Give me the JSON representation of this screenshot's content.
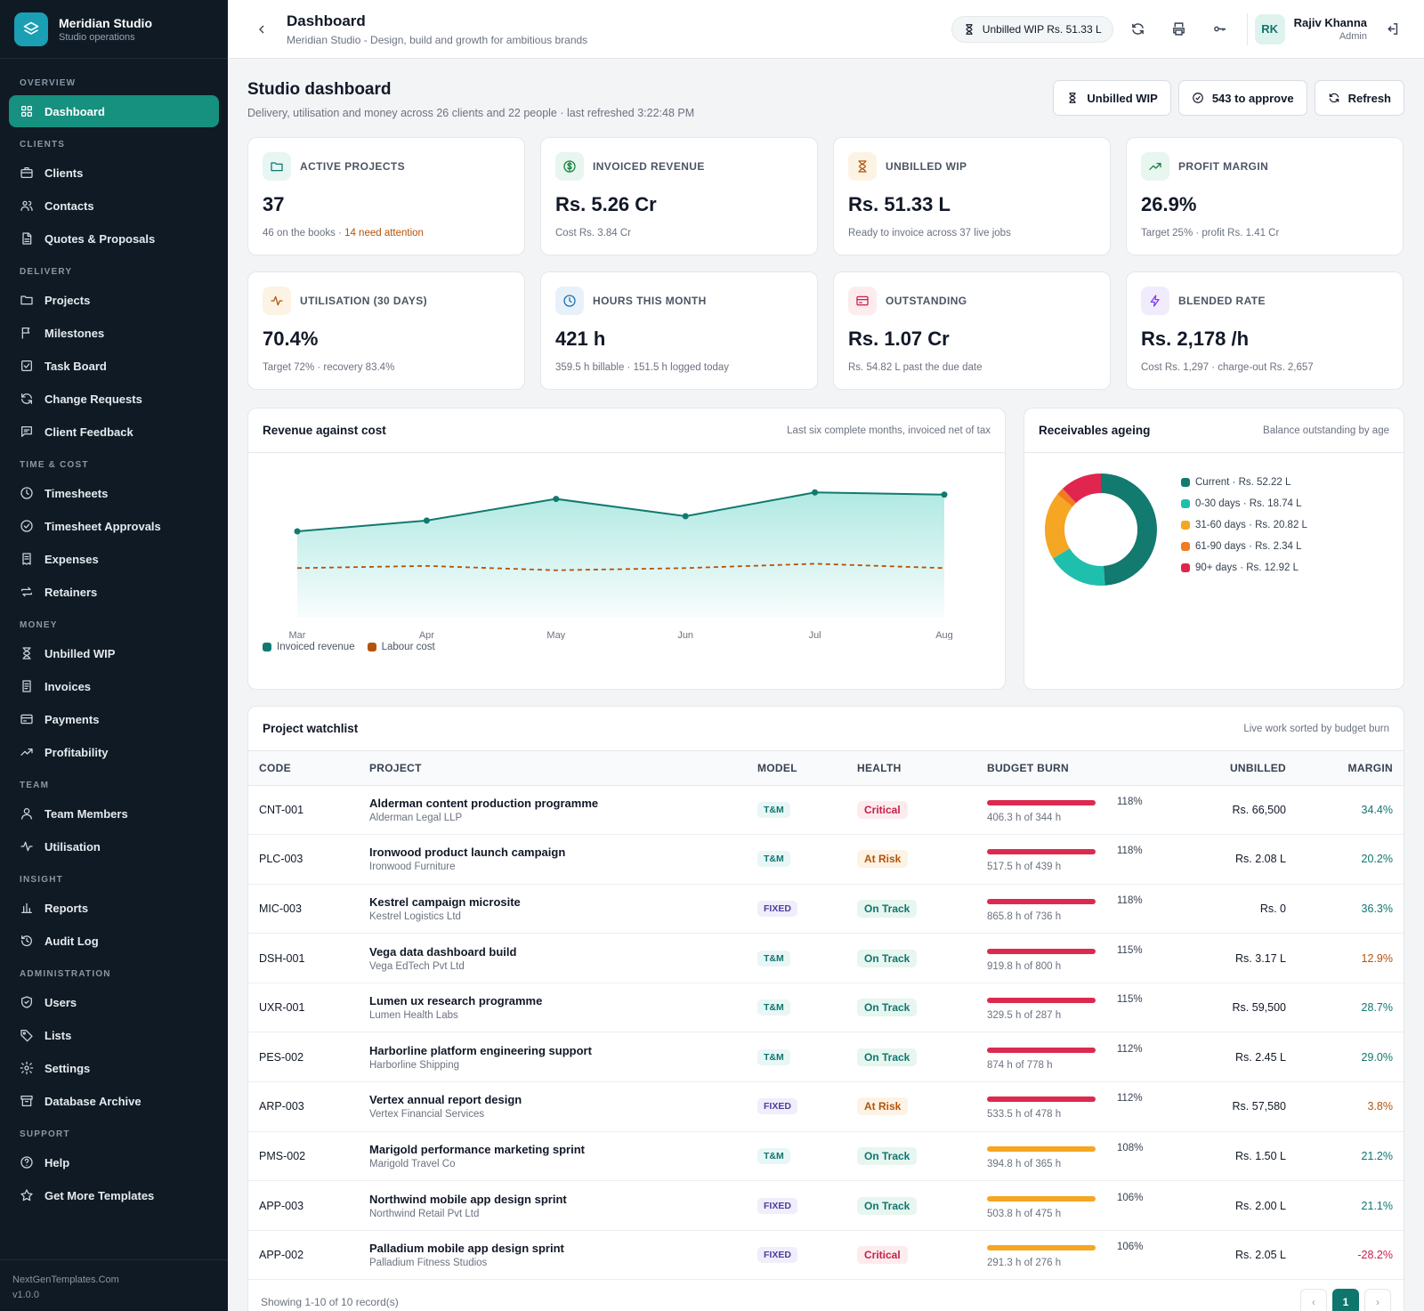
{
  "brand": {
    "name": "Meridian Studio",
    "subtitle": "Studio operations"
  },
  "sidebar": {
    "sections": [
      {
        "label": "OVERVIEW",
        "items": [
          {
            "label": "Dashboard",
            "icon": "dashboard-icon",
            "active": true
          }
        ]
      },
      {
        "label": "CLIENTS",
        "items": [
          {
            "label": "Clients",
            "icon": "briefcase-icon"
          },
          {
            "label": "Contacts",
            "icon": "users-icon"
          },
          {
            "label": "Quotes & Proposals",
            "icon": "document-icon"
          }
        ]
      },
      {
        "label": "DELIVERY",
        "items": [
          {
            "label": "Projects",
            "icon": "folder-icon"
          },
          {
            "label": "Milestones",
            "icon": "flag-icon"
          },
          {
            "label": "Task Board",
            "icon": "checkbox-icon"
          },
          {
            "label": "Change Requests",
            "icon": "refresh-icon"
          },
          {
            "label": "Client Feedback",
            "icon": "message-icon"
          }
        ]
      },
      {
        "label": "TIME & COST",
        "items": [
          {
            "label": "Timesheets",
            "icon": "clock-icon"
          },
          {
            "label": "Timesheet Approvals",
            "icon": "check-circle-icon"
          },
          {
            "label": "Expenses",
            "icon": "receipt-icon"
          },
          {
            "label": "Retainers",
            "icon": "repeat-icon"
          }
        ]
      },
      {
        "label": "MONEY",
        "items": [
          {
            "label": "Unbilled WIP",
            "icon": "hourglass-icon"
          },
          {
            "label": "Invoices",
            "icon": "invoice-icon"
          },
          {
            "label": "Payments",
            "icon": "credit-card-icon"
          },
          {
            "label": "Profitability",
            "icon": "trending-up-icon"
          }
        ]
      },
      {
        "label": "TEAM",
        "items": [
          {
            "label": "Team Members",
            "icon": "user-icon"
          },
          {
            "label": "Utilisation",
            "icon": "activity-icon"
          }
        ]
      },
      {
        "label": "INSIGHT",
        "items": [
          {
            "label": "Reports",
            "icon": "bar-chart-icon"
          },
          {
            "label": "Audit Log",
            "icon": "history-icon"
          }
        ]
      },
      {
        "label": "ADMINISTRATION",
        "items": [
          {
            "label": "Users",
            "icon": "shield-icon"
          },
          {
            "label": "Lists",
            "icon": "tag-icon"
          },
          {
            "label": "Settings",
            "icon": "gear-icon"
          },
          {
            "label": "Database Archive",
            "icon": "archive-icon"
          }
        ]
      },
      {
        "label": "SUPPORT",
        "items": [
          {
            "label": "Help",
            "icon": "help-icon"
          },
          {
            "label": "Get More Templates",
            "icon": "star-icon"
          }
        ]
      }
    ],
    "footer": {
      "site": "NextGenTemplates.Com",
      "version": "v1.0.0"
    }
  },
  "topbar": {
    "title": "Dashboard",
    "subtitle": "Meridian Studio - Design, build and growth for ambitious brands",
    "wip_pill": "Unbilled WIP Rs. 51.33 L",
    "user": {
      "initials": "RK",
      "name": "Rajiv Khanna",
      "role": "Admin"
    }
  },
  "page": {
    "title": "Studio dashboard",
    "subtitle": "Delivery, utilisation and money across 26 clients and 22 people · last refreshed 3:22:48 PM",
    "buttons": {
      "wip": "Unbilled WIP",
      "approve": "543 to approve",
      "refresh": "Refresh"
    }
  },
  "kpis": [
    {
      "label": "ACTIVE PROJECTS",
      "value": "37",
      "sub": "46 on the books · ",
      "sub_warn": "14 need attention",
      "icon": "folder-icon",
      "bg": "#e7f6f3",
      "fg": "#0f766e"
    },
    {
      "label": "INVOICED REVENUE",
      "value": "Rs. 5.26 Cr",
      "sub": "Cost Rs. 3.84 Cr",
      "sub_warn": "",
      "icon": "dollar-icon",
      "bg": "#e7f6ef",
      "fg": "#15803d"
    },
    {
      "label": "UNBILLED WIP",
      "value": "Rs. 51.33 L",
      "sub": "Ready to invoice across 37 live jobs",
      "sub_warn": "",
      "icon": "hourglass-icon",
      "bg": "#fdf3e4",
      "fg": "#b45309"
    },
    {
      "label": "PROFIT MARGIN",
      "value": "26.9%",
      "sub": "Target 25% · profit Rs. 1.41 Cr",
      "sub_warn": "",
      "icon": "trending-up-icon",
      "bg": "#e7f6ef",
      "fg": "#15803d"
    },
    {
      "label": "UTILISATION (30 DAYS)",
      "value": "70.4%",
      "sub": "Target 72% · recovery 83.4%",
      "sub_warn": "",
      "icon": "activity-icon",
      "bg": "#fdf3e4",
      "fg": "#b45309"
    },
    {
      "label": "HOURS THIS MONTH",
      "value": "421 h",
      "sub": "359.5 h billable · 151.5 h logged today",
      "sub_warn": "",
      "icon": "clock-icon",
      "bg": "#e8f1fa",
      "fg": "#1d6fa5"
    },
    {
      "label": "OUTSTANDING",
      "value": "Rs. 1.07 Cr",
      "sub": "Rs. 54.82 L past the due date",
      "sub_warn": "",
      "icon": "credit-card-icon",
      "bg": "#fdecee",
      "fg": "#c81e4a"
    },
    {
      "label": "BLENDED RATE",
      "value": "Rs. 2,178 /h",
      "sub": "Cost Rs. 1,297 · charge-out Rs. 2,657",
      "sub_warn": "",
      "icon": "zap-icon",
      "bg": "#f1ecfb",
      "fg": "#7c3aed"
    }
  ],
  "revenue_card": {
    "title": "Revenue against cost",
    "subtitle": "Last six complete months, invoiced net of tax"
  },
  "receivables_card": {
    "title": "Receivables ageing",
    "subtitle": "Balance outstanding by age"
  },
  "chart_data": [
    {
      "type": "area",
      "title": "Revenue against cost",
      "categories": [
        "Mar",
        "Apr",
        "May",
        "Jun",
        "Jul",
        "Aug"
      ],
      "series": [
        {
          "name": "Invoiced revenue",
          "values": [
            82,
            87,
            97,
            89,
            100,
            99
          ],
          "color": "#117a6f"
        },
        {
          "name": "Labour cost",
          "values": [
            65,
            66,
            64,
            65,
            67,
            65
          ],
          "color": "#b45309"
        }
      ],
      "ylim": [
        40,
        110
      ],
      "grid": false,
      "legend": "bottom-left"
    },
    {
      "type": "pie",
      "title": "Receivables ageing",
      "series": [
        {
          "name": "Current · Rs. 52.22 L",
          "value": 52.22,
          "color": "#127a6f"
        },
        {
          "name": "0-30 days · Rs. 18.74 L",
          "value": 18.74,
          "color": "#1fbfae"
        },
        {
          "name": "31-60 days · Rs. 20.82 L",
          "value": 20.82,
          "color": "#f5a623"
        },
        {
          "name": "61-90 days · Rs. 2.34 L",
          "value": 2.34,
          "color": "#f27b21"
        },
        {
          "name": "90+ days · Rs. 12.92 L",
          "value": 12.92,
          "color": "#e0264f"
        }
      ],
      "legend": "right"
    }
  ],
  "watchlist": {
    "title": "Project watchlist",
    "subtitle": "Live work sorted by budget burn",
    "columns": [
      "CODE",
      "PROJECT",
      "MODEL",
      "HEALTH",
      "BUDGET BURN",
      "UNBILLED",
      "MARGIN"
    ],
    "rows": [
      {
        "code": "CNT-001",
        "name": "Alderman content production programme",
        "client": "Alderman Legal LLP",
        "model": "T&M",
        "health": "Critical",
        "burn_pct": "118%",
        "burn": 1.18,
        "burn_text": "406.3 h of 344 h",
        "unbilled": "Rs. 66,500",
        "margin": "34.4%"
      },
      {
        "code": "PLC-003",
        "name": "Ironwood product launch campaign",
        "client": "Ironwood Furniture",
        "model": "T&M",
        "health": "At Risk",
        "burn_pct": "118%",
        "burn": 1.18,
        "burn_text": "517.5 h of 439 h",
        "unbilled": "Rs. 2.08 L",
        "margin": "20.2%"
      },
      {
        "code": "MIC-003",
        "name": "Kestrel campaign microsite",
        "client": "Kestrel Logistics Ltd",
        "model": "FIXED",
        "health": "On Track",
        "burn_pct": "118%",
        "burn": 1.18,
        "burn_text": "865.8 h of 736 h",
        "unbilled": "Rs. 0",
        "margin": "36.3%"
      },
      {
        "code": "DSH-001",
        "name": "Vega data dashboard build",
        "client": "Vega EdTech Pvt Ltd",
        "model": "T&M",
        "health": "On Track",
        "burn_pct": "115%",
        "burn": 1.15,
        "burn_text": "919.8 h of 800 h",
        "unbilled": "Rs. 3.17 L",
        "margin": "12.9%"
      },
      {
        "code": "UXR-001",
        "name": "Lumen ux research programme",
        "client": "Lumen Health Labs",
        "model": "T&M",
        "health": "On Track",
        "burn_pct": "115%",
        "burn": 1.15,
        "burn_text": "329.5 h of 287 h",
        "unbilled": "Rs. 59,500",
        "margin": "28.7%"
      },
      {
        "code": "PES-002",
        "name": "Harborline platform engineering support",
        "client": "Harborline Shipping",
        "model": "T&M",
        "health": "On Track",
        "burn_pct": "112%",
        "burn": 1.12,
        "burn_text": "874 h of 778 h",
        "unbilled": "Rs. 2.45 L",
        "margin": "29.0%"
      },
      {
        "code": "ARP-003",
        "name": "Vertex annual report design",
        "client": "Vertex Financial Services",
        "model": "FIXED",
        "health": "At Risk",
        "burn_pct": "112%",
        "burn": 1.12,
        "burn_text": "533.5 h of 478 h",
        "unbilled": "Rs. 57,580",
        "margin": "3.8%"
      },
      {
        "code": "PMS-002",
        "name": "Marigold performance marketing sprint",
        "client": "Marigold Travel Co",
        "model": "T&M",
        "health": "On Track",
        "burn_pct": "108%",
        "burn": 1.08,
        "burn_text": "394.8 h of 365 h",
        "unbilled": "Rs. 1.50 L",
        "margin": "21.2%"
      },
      {
        "code": "APP-003",
        "name": "Northwind mobile app design sprint",
        "client": "Northwind Retail Pvt Ltd",
        "model": "FIXED",
        "health": "On Track",
        "burn_pct": "106%",
        "burn": 1.06,
        "burn_text": "503.8 h of 475 h",
        "unbilled": "Rs. 2.00 L",
        "margin": "21.1%"
      },
      {
        "code": "APP-002",
        "name": "Palladium mobile app design sprint",
        "client": "Palladium Fitness Studios",
        "model": "FIXED",
        "health": "Critical",
        "burn_pct": "106%",
        "burn": 1.06,
        "burn_text": "291.3 h of 276 h",
        "unbilled": "Rs. 2.05 L",
        "margin": "-28.2%"
      }
    ],
    "footer": "Showing 1-10 of 10 record(s)",
    "page": "1"
  }
}
